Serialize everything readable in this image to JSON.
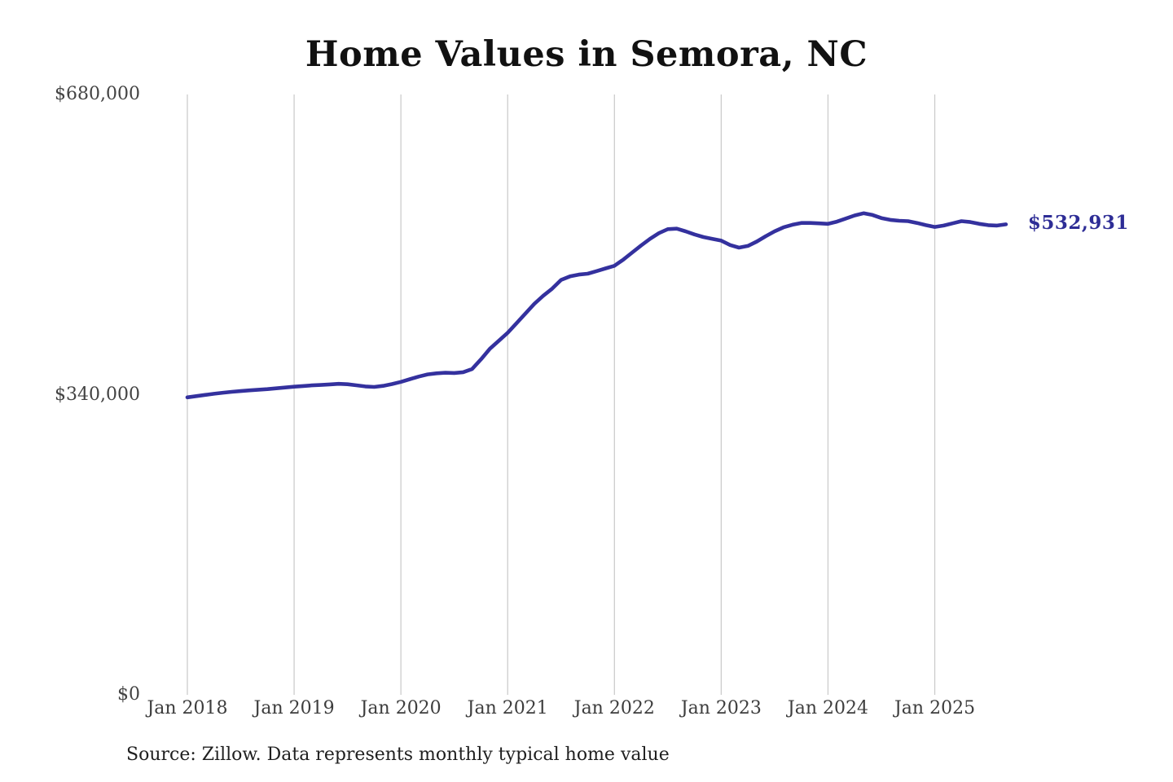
{
  "page": {
    "background": "#ffffff"
  },
  "chart_data": {
    "type": "line",
    "title": "Home Values in Semora, NC",
    "series_name": "Monthly typical home value",
    "x_start": "Jan 2018",
    "x_end": "Sep 2025",
    "x_ticks": [
      "Jan 2018",
      "Jan 2019",
      "Jan 2020",
      "Jan 2021",
      "Jan 2022",
      "Jan 2023",
      "Jan 2024",
      "Jan 2025"
    ],
    "y_ticks": [
      {
        "value": 680000,
        "label": "$680,000"
      },
      {
        "value": 340000,
        "label": "$340,000"
      },
      {
        "value": 0,
        "label": "$0"
      }
    ],
    "ylim": [
      0,
      680000
    ],
    "grid": "vertical-only",
    "final_label": "$532,931",
    "final_value": 532931,
    "values_monthly_from_jan_2018": [
      337000,
      338300,
      339700,
      341000,
      342200,
      343200,
      344100,
      344900,
      345600,
      346300,
      347200,
      348100,
      349000,
      349800,
      350500,
      351000,
      351600,
      352300,
      351800,
      350600,
      349300,
      348800,
      350000,
      352000,
      354500,
      357500,
      360500,
      363000,
      364200,
      364800,
      364500,
      365500,
      369000,
      380000,
      392000,
      401000,
      410000,
      421000,
      432000,
      443000,
      452000,
      460000,
      470000,
      474000,
      476000,
      477000,
      480000,
      483000,
      486000,
      493000,
      501000,
      509000,
      516500,
      523000,
      527500,
      528000,
      525000,
      521500,
      518500,
      516500,
      514500,
      509500,
      506500,
      508500,
      513500,
      519500,
      525000,
      529500,
      532500,
      534500,
      534500,
      534000,
      533500,
      536000,
      539500,
      543000,
      545500,
      543500,
      540000,
      538000,
      537000,
      536500,
      534500,
      532000,
      530000,
      531500,
      534000,
      536500,
      535500,
      533500,
      532000,
      531500,
      532931
    ]
  },
  "source_note": "Source: Zillow. Data represents monthly typical home value",
  "colors": {
    "line": "#34319e",
    "end_label": "#2e2d96",
    "grid": "#cccccc",
    "title": "#111111",
    "axis_text": "#3d3d3d",
    "source_text": "#1f1f1f"
  }
}
